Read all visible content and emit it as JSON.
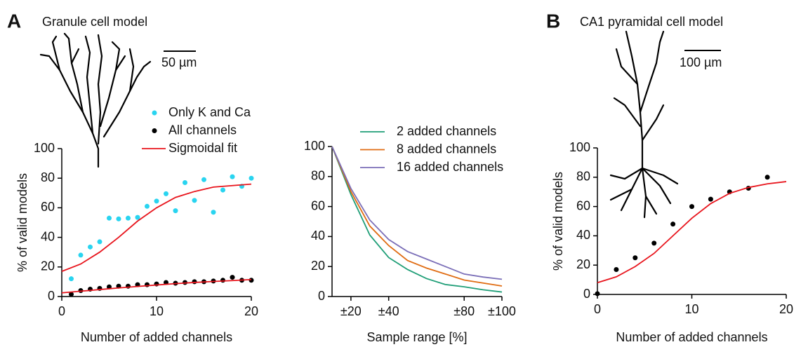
{
  "panels": [
    {
      "label": "A",
      "title": "Granule cell model",
      "scale_bar": "50 µm"
    },
    {
      "label": "B",
      "title": "CA1 pyramidal cell model",
      "scale_bar": "100 µm"
    }
  ],
  "chart_data": [
    {
      "type": "scatter",
      "x_label": "Number of added channels",
      "y_label": "% of valid models",
      "xlim": [
        0,
        20
      ],
      "xticks": [
        0,
        10,
        20
      ],
      "ylim": [
        0,
        100
      ],
      "yticks": [
        0,
        20,
        40,
        60,
        80,
        100
      ],
      "legend": "top right",
      "series": [
        {
          "name": "Only K and Ca",
          "color": "#29d4f0",
          "type": "scatter",
          "x": [
            1,
            2,
            3,
            4,
            5,
            6,
            7,
            8,
            9,
            10,
            11,
            12,
            13,
            14,
            15,
            16,
            17,
            18,
            19,
            20
          ],
          "values": [
            12,
            28,
            33.5,
            37,
            53,
            52.5,
            53,
            53.5,
            61,
            64.5,
            69.5,
            58,
            77,
            65,
            79,
            57,
            72,
            81,
            74.5,
            80
          ]
        },
        {
          "name": "All channels",
          "color": "#000000",
          "type": "scatter",
          "x": [
            1,
            2,
            3,
            4,
            5,
            6,
            7,
            8,
            9,
            10,
            11,
            12,
            13,
            14,
            15,
            16,
            17,
            18,
            19,
            20
          ],
          "values": [
            1.5,
            4,
            5,
            5.5,
            6.5,
            7,
            7,
            8,
            8,
            8.5,
            9.5,
            9,
            9.5,
            10,
            10,
            10.5,
            11,
            13,
            11,
            11
          ]
        },
        {
          "name": "Sigmoidal fit",
          "color": "#e8141c",
          "type": "line",
          "x": [
            0,
            2,
            4,
            6,
            8,
            10,
            12,
            14,
            16,
            18,
            20
          ],
          "values": [
            17,
            22,
            30,
            40,
            51,
            60,
            67,
            71,
            74,
            75,
            76
          ]
        },
        {
          "color": "#e8141c",
          "type": "line",
          "x": [
            0,
            2,
            4,
            6,
            8,
            10,
            12,
            14,
            16,
            18,
            20
          ],
          "values": [
            2.5,
            3.6,
            4.7,
            5.8,
            6.8,
            7.8,
            8.7,
            9.5,
            10.2,
            10.8,
            11.5
          ]
        }
      ]
    },
    {
      "type": "line",
      "x_label": "Sample range [%]",
      "xlim": [
        10,
        100
      ],
      "xticks": [
        {
          "value": 20,
          "label": "±20"
        },
        {
          "value": 40,
          "label": "±40"
        },
        {
          "value": 80,
          "label": "±80"
        },
        {
          "value": 100,
          "label": "±100"
        }
      ],
      "ylim": [
        0,
        100
      ],
      "yticks": [
        0,
        20,
        40,
        60,
        80,
        100
      ],
      "legend": "top right",
      "series": [
        {
          "name": "2 added channels",
          "color": "#1f9e77",
          "x": [
            10,
            20,
            30,
            40,
            50,
            60,
            70,
            80,
            90,
            100
          ],
          "values": [
            100,
            68,
            41,
            26,
            18,
            12,
            8,
            6.5,
            4.5,
            3
          ]
        },
        {
          "name": "8 added channels",
          "color": "#e06c12",
          "x": [
            10,
            20,
            30,
            40,
            50,
            60,
            70,
            80,
            90,
            100
          ],
          "values": [
            100,
            70,
            47,
            34,
            24,
            19,
            15,
            11,
            9,
            7
          ]
        },
        {
          "name": "16 added channels",
          "color": "#7b6fb8",
          "x": [
            10,
            20,
            30,
            40,
            50,
            60,
            70,
            80,
            90,
            100
          ],
          "values": [
            100,
            72,
            51,
            38,
            30,
            25,
            20,
            15,
            13,
            11.5
          ]
        }
      ]
    },
    {
      "type": "scatter",
      "x_label": "Number of added channels",
      "y_label": "% of valid models",
      "xlim": [
        0,
        20
      ],
      "xticks": [
        0,
        10,
        20
      ],
      "ylim": [
        0,
        100
      ],
      "yticks": [
        0,
        20,
        40,
        60,
        80,
        100
      ],
      "series": [
        {
          "color": "#000000",
          "type": "scatter",
          "x": [
            0,
            2,
            4,
            6,
            8,
            10,
            12,
            14,
            16,
            18
          ],
          "values": [
            0.5,
            17,
            25,
            35,
            48,
            60,
            65,
            70,
            72.5,
            80
          ]
        },
        {
          "color": "#e8141c",
          "type": "line",
          "x": [
            0,
            2,
            4,
            6,
            8,
            10,
            12,
            14,
            16,
            18,
            20
          ],
          "values": [
            8,
            12,
            19,
            28,
            40,
            52,
            62,
            69,
            73,
            75.5,
            77
          ]
        }
      ]
    }
  ]
}
